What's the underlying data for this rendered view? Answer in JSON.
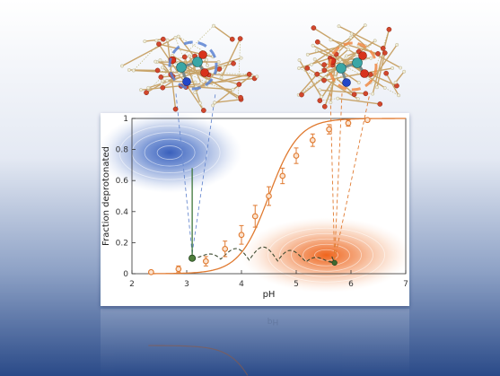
{
  "chart_data": {
    "type": "scatter",
    "title": "",
    "xlabel": "pH",
    "ylabel": "Fraction deprotonated",
    "xlim": [
      2,
      7
    ],
    "ylim": [
      0,
      1
    ],
    "xticks": [
      "2",
      "3",
      "4",
      "5",
      "6",
      "7"
    ],
    "yticks": [
      "0",
      "0.2",
      "0.4",
      "0.6",
      "0.8",
      "1"
    ],
    "grid": false,
    "legend": "none",
    "series": [
      {
        "x": [
          2.35,
          2.85,
          3.35,
          3.7,
          4.0,
          4.25,
          4.5,
          4.75,
          5.0,
          5.3,
          5.6,
          5.95,
          6.3
        ],
        "y": [
          0.01,
          0.03,
          0.08,
          0.16,
          0.25,
          0.37,
          0.5,
          0.63,
          0.76,
          0.86,
          0.93,
          0.97,
          0.99
        ],
        "yerr": [
          0.01,
          0.02,
          0.03,
          0.05,
          0.06,
          0.07,
          0.06,
          0.05,
          0.05,
          0.04,
          0.03,
          0.02,
          0.01
        ]
      }
    ],
    "fit_curve": {
      "pKa": 4.5,
      "slope": 1.6
    },
    "annotations": {
      "left_state": {
        "x": 3.1,
        "y": 0.1
      },
      "right_state": {
        "x": 5.7,
        "y": 0.07
      },
      "path_oscillations": 5
    },
    "colors": {
      "data": "#e07a30",
      "protonated_cloud": "#2f57b8",
      "deprotonated_cloud": "#ee6a1e",
      "path": "#3d4a30",
      "background_top": "#ffffff",
      "background_bottom": "#2a4a88"
    },
    "icons": [
      "molecule-cluster-left",
      "molecule-cluster-right"
    ]
  }
}
